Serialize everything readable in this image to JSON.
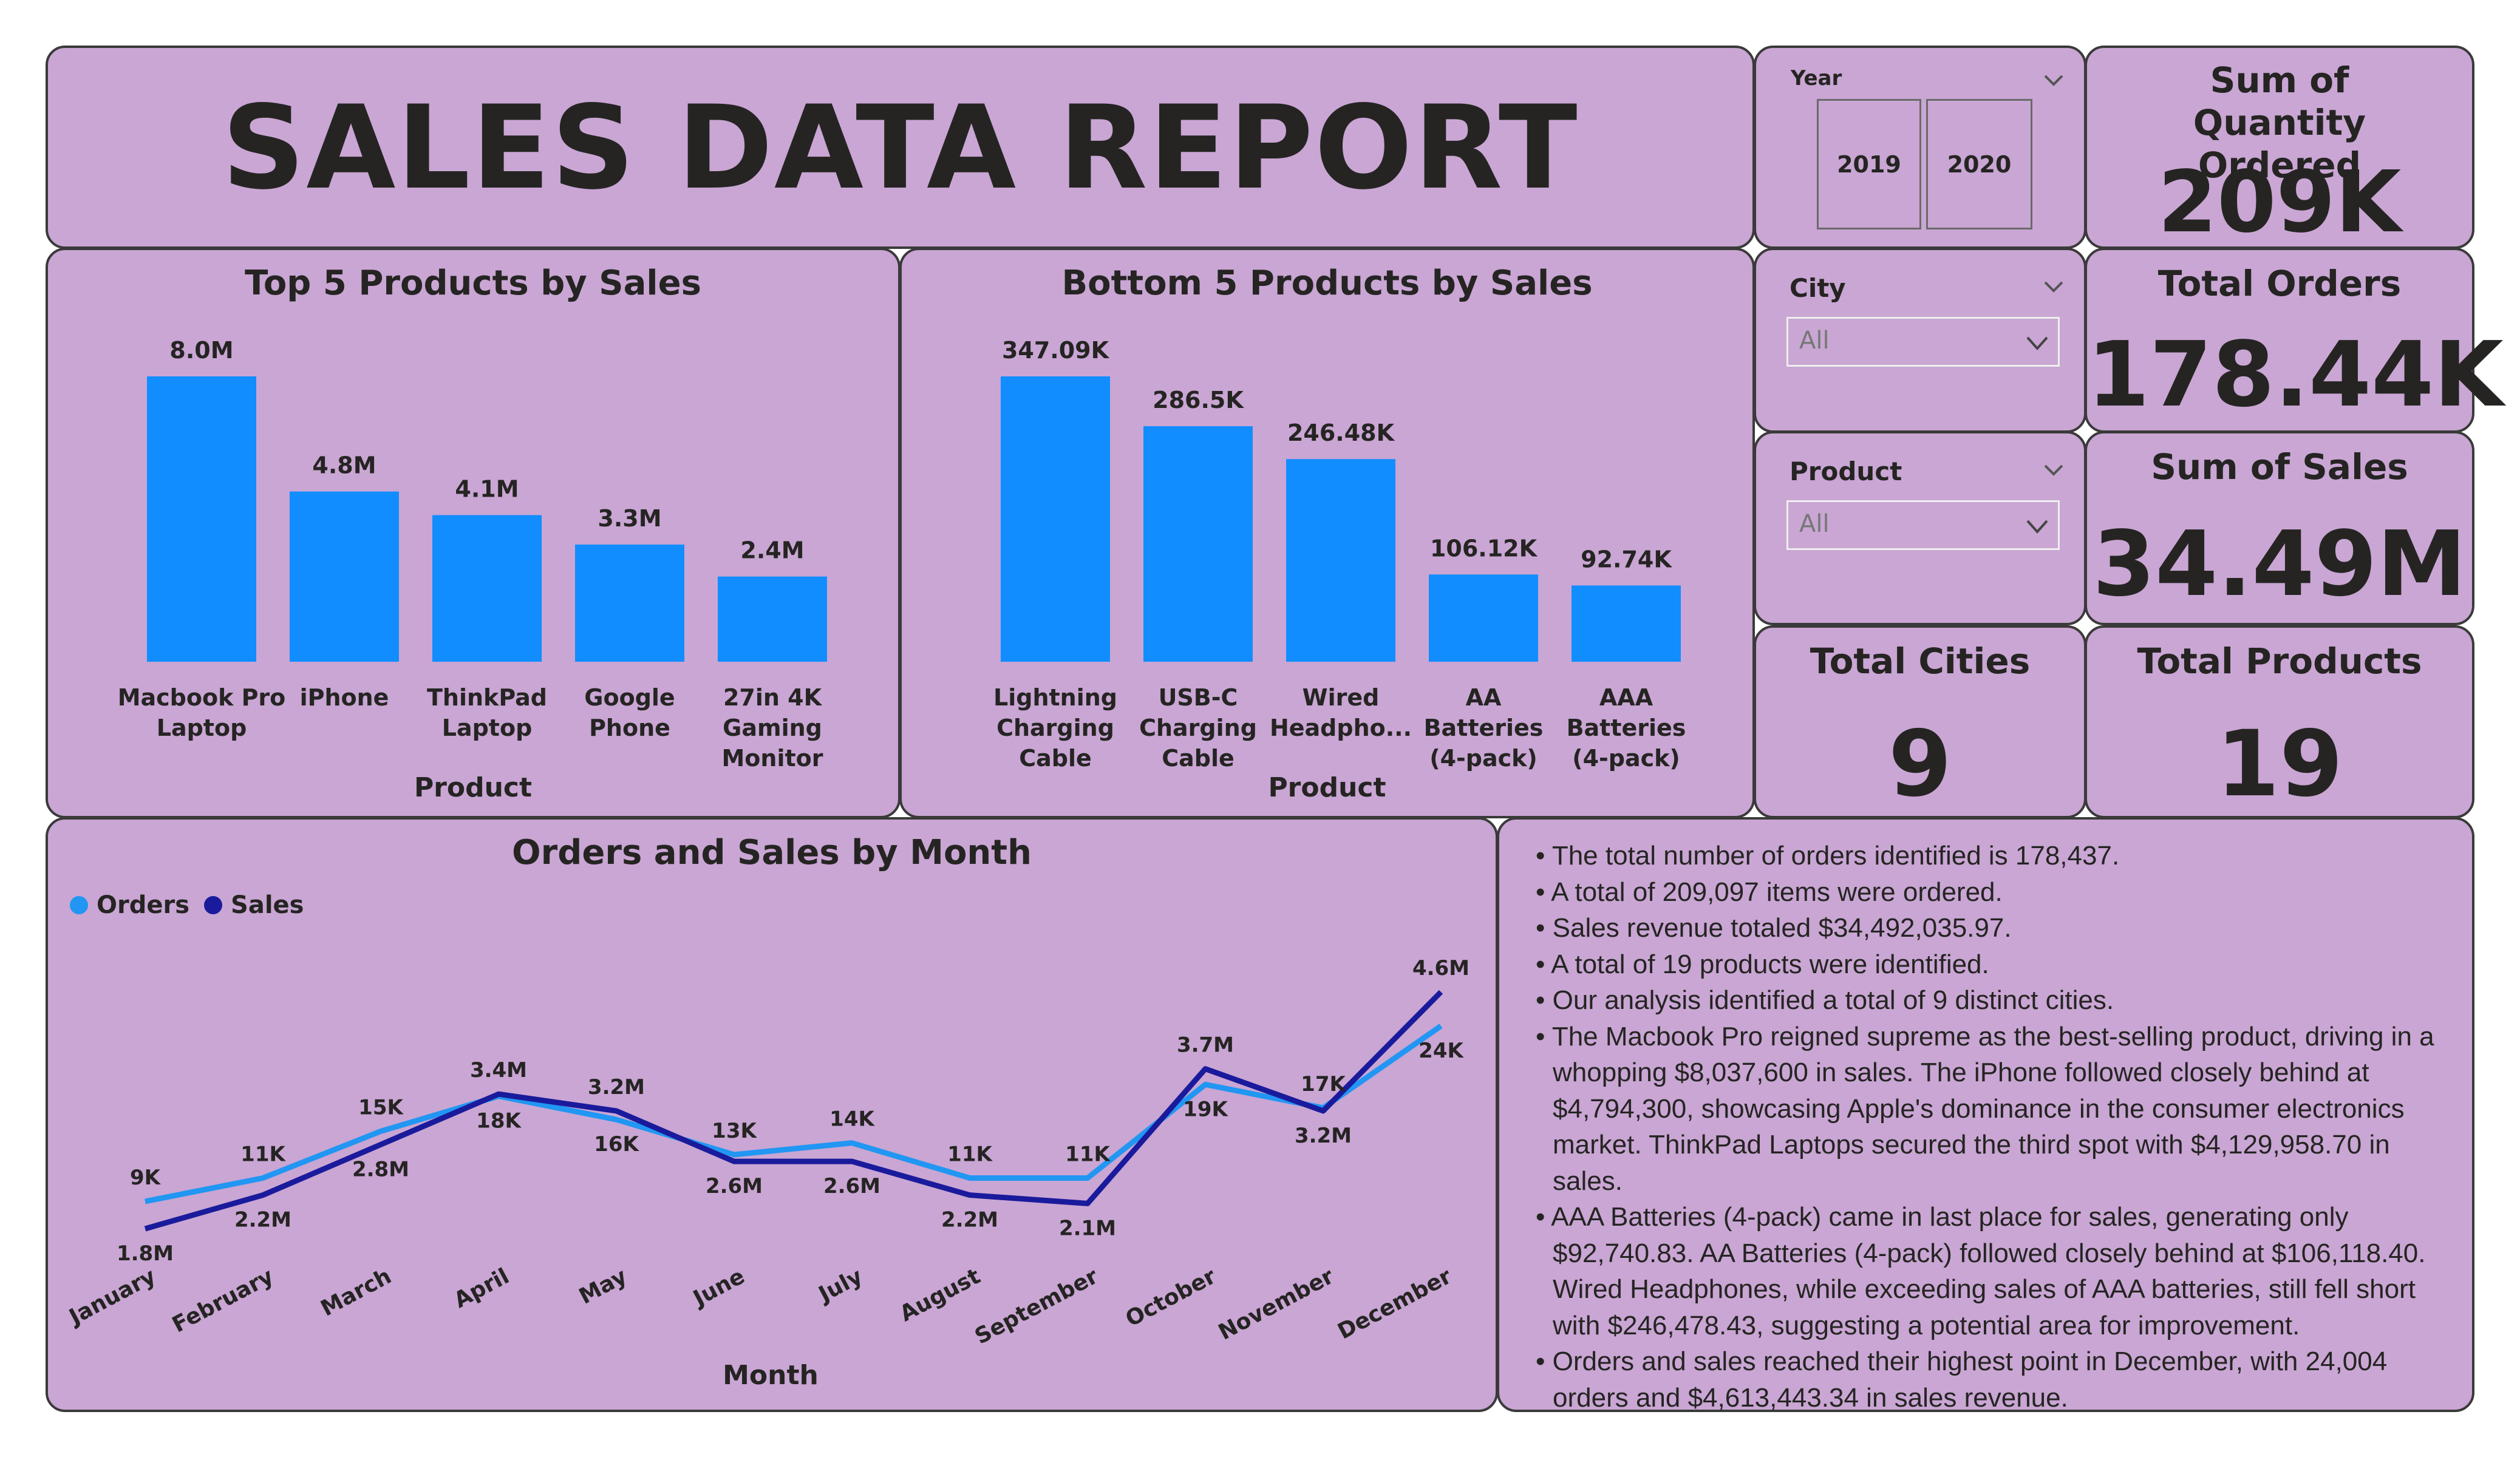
{
  "header": {
    "title": "SALES DATA REPORT"
  },
  "colors": {
    "panel": "#c9a6d3",
    "bar": "#118dff",
    "orders_line": "#2196f3",
    "sales_line": "#1a1a9c"
  },
  "slicers": {
    "year": {
      "label": "Year",
      "options": [
        "2019",
        "2020"
      ]
    },
    "city": {
      "label": "City",
      "value": "All"
    },
    "product": {
      "label": "Product",
      "value": "All"
    }
  },
  "kpis": {
    "quantity": {
      "label": "Sum of Quantity Ordered",
      "value": "209K"
    },
    "orders": {
      "label": "Total Orders",
      "value": "178.44K"
    },
    "sales": {
      "label": "Sum of Sales",
      "value": "34.49M"
    },
    "cities": {
      "label": "Total Cities",
      "value": "9"
    },
    "products": {
      "label": "Total Products",
      "value": "19"
    }
  },
  "chart_data": [
    {
      "type": "bar",
      "title": "Top 5 Products by Sales",
      "xlabel": "Product",
      "categories": [
        "Macbook Pro Laptop",
        "iPhone",
        "ThinkPad Laptop",
        "Google Phone",
        "27in 4K Gaming Monitor"
      ],
      "values": [
        8037600,
        4794300,
        4129958.7,
        3300000,
        2400000
      ],
      "data_labels": [
        "8.0M",
        "4.8M",
        "4.1M",
        "3.3M",
        "2.4M"
      ]
    },
    {
      "type": "bar",
      "title": "Bottom 5 Products by Sales",
      "xlabel": "Product",
      "categories": [
        "Lightning Charging Cable",
        "USB-C Charging Cable",
        "Wired Headpho...",
        "AA Batteries (4-pack)",
        "AAA Batteries (4-pack)"
      ],
      "values": [
        347090,
        286500,
        246478.43,
        106118.4,
        92740.83
      ],
      "data_labels": [
        "347.09K",
        "286.5K",
        "246.48K",
        "106.12K",
        "92.74K"
      ]
    },
    {
      "type": "line",
      "title": "Orders and Sales by Month",
      "xlabel": "Month",
      "legend": "top-left",
      "categories": [
        "January",
        "February",
        "March",
        "April",
        "May",
        "June",
        "July",
        "August",
        "September",
        "October",
        "November",
        "December"
      ],
      "series": [
        {
          "name": "Orders",
          "values": [
            9000,
            11000,
            15000,
            18000,
            16000,
            13000,
            14000,
            11000,
            11000,
            19000,
            17000,
            24004
          ],
          "labels": [
            "9K",
            "11K",
            "15K",
            "18K",
            "16K",
            "13K",
            "14K",
            "11K",
            "11K",
            "19K",
            "17K",
            "24K"
          ]
        },
        {
          "name": "Sales",
          "values": [
            1800000,
            2200000,
            2800000,
            3400000,
            3200000,
            2600000,
            2600000,
            2200000,
            2100000,
            3700000,
            3200000,
            4613443.34
          ],
          "labels": [
            "1.8M",
            "2.2M",
            "2.8M",
            "3.4M",
            "3.2M",
            "2.6M",
            "2.6M",
            "2.2M",
            "2.1M",
            "3.7M",
            "3.2M",
            "4.6M"
          ]
        }
      ]
    }
  ],
  "summary": {
    "bullets": [
      "The total number of orders identified is 178,437.",
      "A total of 209,097 items were ordered.",
      "Sales revenue totaled $34,492,035.97.",
      "A total of 19 products were identified.",
      "Our analysis identified a total of 9 distinct cities.",
      "The Macbook Pro reigned supreme as the best-selling product, driving in a whopping $8,037,600 in sales. The iPhone followed closely behind at $4,794,300, showcasing Apple's dominance in the consumer electronics market. ThinkPad Laptops secured the third spot with $4,129,958.70 in sales.",
      "AAA Batteries (4-pack) came in last place for sales, generating only $92,740.83. AA Batteries (4-pack) followed closely behind at $106,118.40. Wired Headphones, while exceeding sales of AAA batteries, still fell short with $246,478.43, suggesting a potential area for improvement.",
      "Orders and sales reached their highest point in December, with 24,004 orders and $4,613,443.34 in sales revenue."
    ]
  }
}
